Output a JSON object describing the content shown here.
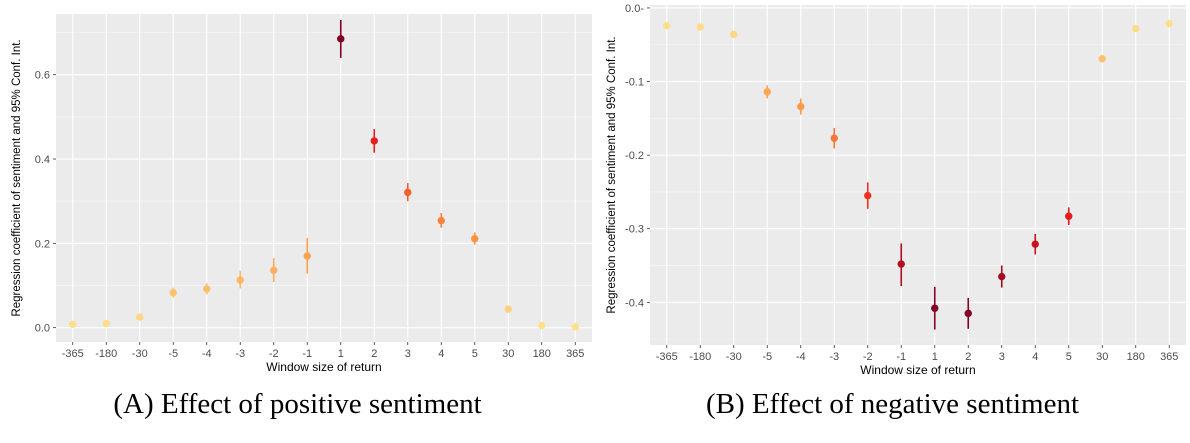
{
  "chart_data": [
    {
      "type": "scatter",
      "title": "",
      "caption": "(A) Effect of positive sentiment",
      "xlabel": "Window size of return",
      "ylabel": "Regression coefficient of sentiment and 95% Conf. Int.",
      "categories": [
        "-365",
        "-180",
        "-30",
        "-5",
        "-4",
        "-3",
        "-2",
        "-1",
        "1",
        "2",
        "3",
        "4",
        "5",
        "30",
        "180",
        "365"
      ],
      "values": [
        0.008,
        0.01,
        0.025,
        0.083,
        0.092,
        0.113,
        0.136,
        0.17,
        0.685,
        0.443,
        0.321,
        0.254,
        0.211,
        0.044,
        0.005,
        0.002
      ],
      "ci_low": [
        0.005,
        0.007,
        0.019,
        0.071,
        0.079,
        0.093,
        0.108,
        0.128,
        0.64,
        0.415,
        0.3,
        0.237,
        0.197,
        0.038,
        0.002,
        0.0
      ],
      "ci_high": [
        0.011,
        0.013,
        0.031,
        0.095,
        0.105,
        0.135,
        0.165,
        0.213,
        0.73,
        0.471,
        0.343,
        0.272,
        0.226,
        0.05,
        0.008,
        0.004
      ],
      "yticks": [
        0.0,
        0.2,
        0.4,
        0.6
      ],
      "ytick_labels": [
        "0.0",
        "0.2",
        "0.4",
        "0.6"
      ],
      "ylim": [
        -0.034,
        0.744
      ],
      "grid": true,
      "legend": "none",
      "color_scale": {
        "low": "#fee08b",
        "high": "#800026"
      }
    },
    {
      "type": "scatter",
      "title": "",
      "caption": "(B) Effect of negative sentiment",
      "xlabel": "Window size of return",
      "ylabel": "Regression coefficient of sentiment and 95% Conf. Int.",
      "categories": [
        "-365",
        "-180",
        "-30",
        "-5",
        "-4",
        "-3",
        "-2",
        "-1",
        "1",
        "2",
        "3",
        "4",
        "5",
        "30",
        "180",
        "365"
      ],
      "values": [
        -0.024,
        -0.026,
        -0.036,
        -0.114,
        -0.134,
        -0.177,
        -0.255,
        -0.348,
        -0.408,
        -0.415,
        -0.365,
        -0.321,
        -0.283,
        -0.069,
        -0.028,
        -0.021
      ],
      "ci_low": [
        -0.027,
        -0.029,
        -0.04,
        -0.123,
        -0.145,
        -0.191,
        -0.273,
        -0.378,
        -0.437,
        -0.436,
        -0.38,
        -0.335,
        -0.295,
        -0.073,
        -0.031,
        -0.024
      ],
      "ci_high": [
        -0.021,
        -0.023,
        -0.032,
        -0.105,
        -0.123,
        -0.163,
        -0.237,
        -0.32,
        -0.379,
        -0.394,
        -0.35,
        -0.307,
        -0.271,
        -0.065,
        -0.025,
        -0.018
      ],
      "yticks": [
        0.0,
        -0.1,
        -0.2,
        -0.3,
        -0.4
      ],
      "ytick_labels": [
        "0.0-",
        "-0.1",
        "-0.2",
        "-0.3",
        "-0.4"
      ],
      "ylim": [
        -0.458,
        0.004
      ],
      "grid": true,
      "legend": "none",
      "color_scale": {
        "low": "#fee08b",
        "high": "#800026"
      }
    }
  ]
}
